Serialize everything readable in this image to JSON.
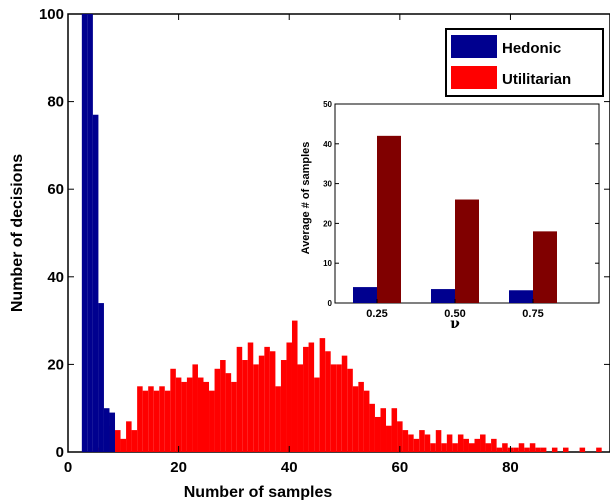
{
  "chart_data": [
    {
      "type": "bar",
      "role": "main-histogram",
      "xlabel": "Number of samples",
      "ylabel": "Number of decisions",
      "xlim": [
        0,
        98
      ],
      "ylim": [
        0,
        100
      ],
      "xticks": [
        0,
        20,
        40,
        60,
        80
      ],
      "yticks": [
        0,
        20,
        40,
        60,
        80,
        100
      ],
      "legend_position": "top-right",
      "series": [
        {
          "name": "Hedonic",
          "color": "#00008f",
          "bins": [
            {
              "x": 3,
              "y": 100
            },
            {
              "x": 4,
              "y": 100
            },
            {
              "x": 5,
              "y": 77
            },
            {
              "x": 6,
              "y": 34
            },
            {
              "x": 7,
              "y": 10
            },
            {
              "x": 8,
              "y": 9
            }
          ]
        },
        {
          "name": "Utilitarian",
          "color": "#ff0000",
          "bins": [
            {
              "x": 5,
              "y": 1
            },
            {
              "x": 7,
              "y": 6
            },
            {
              "x": 8,
              "y": 6
            },
            {
              "x": 9,
              "y": 5
            },
            {
              "x": 10,
              "y": 3
            },
            {
              "x": 11,
              "y": 7
            },
            {
              "x": 12,
              "y": 5
            },
            {
              "x": 13,
              "y": 15
            },
            {
              "x": 14,
              "y": 14
            },
            {
              "x": 15,
              "y": 15
            },
            {
              "x": 16,
              "y": 14
            },
            {
              "x": 17,
              "y": 15
            },
            {
              "x": 18,
              "y": 14
            },
            {
              "x": 19,
              "y": 19
            },
            {
              "x": 20,
              "y": 17
            },
            {
              "x": 21,
              "y": 16
            },
            {
              "x": 22,
              "y": 17
            },
            {
              "x": 23,
              "y": 20
            },
            {
              "x": 24,
              "y": 17
            },
            {
              "x": 25,
              "y": 16
            },
            {
              "x": 26,
              "y": 14
            },
            {
              "x": 27,
              "y": 19
            },
            {
              "x": 28,
              "y": 21
            },
            {
              "x": 29,
              "y": 18
            },
            {
              "x": 30,
              "y": 16
            },
            {
              "x": 31,
              "y": 24
            },
            {
              "x": 32,
              "y": 21
            },
            {
              "x": 33,
              "y": 25
            },
            {
              "x": 34,
              "y": 20
            },
            {
              "x": 35,
              "y": 22
            },
            {
              "x": 36,
              "y": 24
            },
            {
              "x": 37,
              "y": 23
            },
            {
              "x": 38,
              "y": 15
            },
            {
              "x": 39,
              "y": 21
            },
            {
              "x": 40,
              "y": 25
            },
            {
              "x": 41,
              "y": 30
            },
            {
              "x": 42,
              "y": 20
            },
            {
              "x": 43,
              "y": 24
            },
            {
              "x": 44,
              "y": 25
            },
            {
              "x": 45,
              "y": 17
            },
            {
              "x": 46,
              "y": 26
            },
            {
              "x": 47,
              "y": 23
            },
            {
              "x": 48,
              "y": 20
            },
            {
              "x": 49,
              "y": 20
            },
            {
              "x": 50,
              "y": 22
            },
            {
              "x": 51,
              "y": 19
            },
            {
              "x": 52,
              "y": 15
            },
            {
              "x": 53,
              "y": 16
            },
            {
              "x": 54,
              "y": 14
            },
            {
              "x": 55,
              "y": 11
            },
            {
              "x": 56,
              "y": 8
            },
            {
              "x": 57,
              "y": 10
            },
            {
              "x": 58,
              "y": 6
            },
            {
              "x": 59,
              "y": 10
            },
            {
              "x": 60,
              "y": 7
            },
            {
              "x": 61,
              "y": 5
            },
            {
              "x": 62,
              "y": 4
            },
            {
              "x": 63,
              "y": 3
            },
            {
              "x": 64,
              "y": 5
            },
            {
              "x": 65,
              "y": 4
            },
            {
              "x": 66,
              "y": 2
            },
            {
              "x": 67,
              "y": 5
            },
            {
              "x": 68,
              "y": 2
            },
            {
              "x": 69,
              "y": 4
            },
            {
              "x": 70,
              "y": 2
            },
            {
              "x": 71,
              "y": 4
            },
            {
              "x": 72,
              "y": 3
            },
            {
              "x": 73,
              "y": 2
            },
            {
              "x": 74,
              "y": 3
            },
            {
              "x": 75,
              "y": 4
            },
            {
              "x": 76,
              "y": 2
            },
            {
              "x": 77,
              "y": 3
            },
            {
              "x": 78,
              "y": 1
            },
            {
              "x": 79,
              "y": 2
            },
            {
              "x": 80,
              "y": 1
            },
            {
              "x": 81,
              "y": 1
            },
            {
              "x": 82,
              "y": 2
            },
            {
              "x": 83,
              "y": 1
            },
            {
              "x": 84,
              "y": 2
            },
            {
              "x": 85,
              "y": 1
            },
            {
              "x": 86,
              "y": 1
            },
            {
              "x": 88,
              "y": 1
            },
            {
              "x": 90,
              "y": 1
            },
            {
              "x": 93,
              "y": 1
            },
            {
              "x": 96,
              "y": 1
            }
          ]
        }
      ]
    },
    {
      "type": "bar",
      "role": "inset",
      "categories": [
        "0.25",
        "0.50",
        "0.75"
      ],
      "xlabel": "ν",
      "ylabel": "Average # of samples",
      "ylim": [
        0,
        50
      ],
      "yticks": [
        0,
        10,
        20,
        30,
        40,
        50
      ],
      "series": [
        {
          "name": "Hedonic",
          "color": "#00008f",
          "values": [
            4,
            3.5,
            3.2
          ]
        },
        {
          "name": "Utilitarian",
          "color": "#800000",
          "values": [
            42,
            26,
            18
          ]
        }
      ]
    }
  ]
}
